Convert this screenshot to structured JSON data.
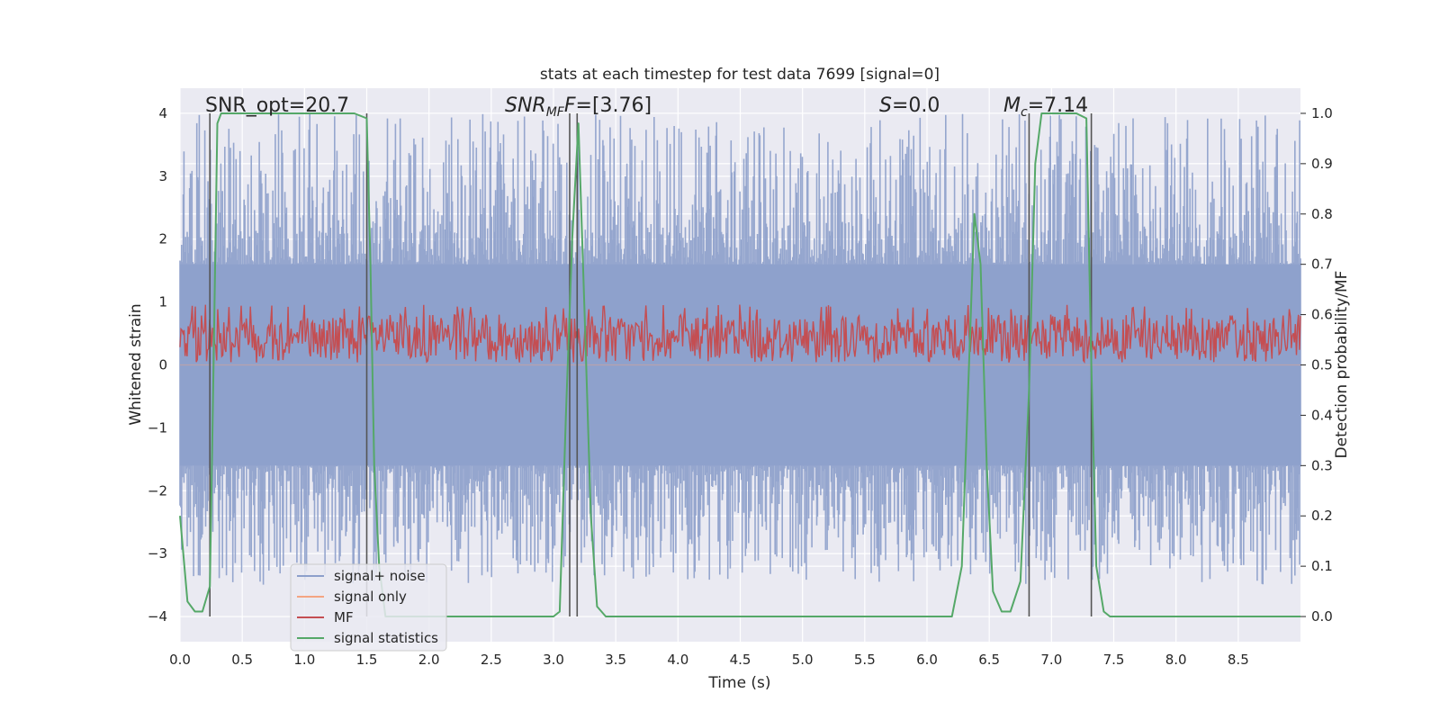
{
  "chart_data": {
    "type": "line",
    "title": "stats at each timestep for test data 7699 [signal=0]",
    "xlabel": "Time (s)",
    "ylabel": "Whitened strain",
    "ylabel_right": "Detection probability/MF",
    "xlim": [
      0,
      9.0
    ],
    "ylim": [
      -4.4,
      4.4
    ],
    "ylim_right": [
      -0.05,
      1.05
    ],
    "x_ticks": [
      0.0,
      0.5,
      1.0,
      1.5,
      2.0,
      2.5,
      3.0,
      3.5,
      4.0,
      4.5,
      5.0,
      5.5,
      6.0,
      6.5,
      7.0,
      7.5,
      8.0,
      8.5
    ],
    "x_tick_labels": [
      "0.0",
      "0.5",
      "1.0",
      "1.5",
      "2.0",
      "2.5",
      "3.0",
      "3.5",
      "4.0",
      "4.5",
      "5.0",
      "5.5",
      "6.0",
      "6.5",
      "7.0",
      "7.5",
      "8.0",
      "8.5"
    ],
    "y_ticks": [
      4,
      3,
      2,
      1,
      0,
      -1,
      -2,
      -3,
      -4
    ],
    "y_tick_labels": [
      "4",
      "3",
      "2",
      "1",
      "0",
      "−1",
      "−2",
      "−3",
      "−4"
    ],
    "y_right_ticks": [
      1.0,
      0.9,
      0.8,
      0.7,
      0.6,
      0.5,
      0.4,
      0.3,
      0.2,
      0.1,
      0.0
    ],
    "y_right_tick_labels": [
      "1.0",
      "0.9",
      "0.8",
      "0.7",
      "0.6",
      "0.5",
      "0.4",
      "0.3",
      "0.2",
      "0.1",
      "0.0"
    ],
    "annotations": {
      "snr_opt": "SNR_opt=20.7",
      "snr_mf_main": "SNR",
      "snr_mf_sub": "MF",
      "snr_mf_rest": "=[3.76]",
      "s_main": "S",
      "s_rest": "=0.0",
      "mc_main": "M",
      "mc_sub": "c",
      "mc_rest": "=7.14"
    },
    "series": [
      {
        "name": "signal+ noise",
        "axis": "left",
        "color": "#8da0cb",
        "kind": "noise",
        "band_min": -1.6,
        "band_max": 1.6,
        "spike_min": -3.5,
        "spike_max": 4.0
      },
      {
        "name": "signal only",
        "axis": "left",
        "color": "#f4a582",
        "x": [
          0,
          9.0
        ],
        "y": [
          0,
          0
        ]
      },
      {
        "name": "MF",
        "axis": "right",
        "color": "#c44e52",
        "kind": "noise",
        "band_min": 0.505,
        "band_max": 0.6,
        "spike_min": 0.5,
        "spike_max": 0.62
      },
      {
        "name": "signal statistics",
        "axis": "right",
        "color": "#55a868",
        "x": [
          0.0,
          0.06,
          0.12,
          0.18,
          0.24,
          0.27,
          0.3,
          0.33,
          0.4,
          0.6,
          1.0,
          1.4,
          1.5,
          1.53,
          1.56,
          1.6,
          1.65,
          2.0,
          2.5,
          3.0,
          3.05,
          3.1,
          3.15,
          3.2,
          3.25,
          3.3,
          3.35,
          3.42,
          4.0,
          5.0,
          6.0,
          6.2,
          6.28,
          6.33,
          6.38,
          6.43,
          6.48,
          6.53,
          6.6,
          6.67,
          6.75,
          6.82,
          6.87,
          6.92,
          7.0,
          7.1,
          7.2,
          7.28,
          7.32,
          7.36,
          7.42,
          7.47,
          7.55,
          8.0,
          8.5,
          9.0
        ],
        "y": [
          0.2,
          0.03,
          0.01,
          0.01,
          0.06,
          0.5,
          0.98,
          1.0,
          1.0,
          1.0,
          1.0,
          1.0,
          0.99,
          0.7,
          0.3,
          0.1,
          0.0,
          0.0,
          0.0,
          0.0,
          0.01,
          0.4,
          0.75,
          0.98,
          0.6,
          0.2,
          0.02,
          0.0,
          0.0,
          0.0,
          0.0,
          0.0,
          0.1,
          0.45,
          0.8,
          0.7,
          0.3,
          0.05,
          0.01,
          0.01,
          0.07,
          0.45,
          0.9,
          1.0,
          1.0,
          1.0,
          1.0,
          0.99,
          0.5,
          0.1,
          0.01,
          0.0,
          0.0,
          0.0,
          0.0,
          0.0
        ]
      }
    ],
    "vertical_lines": [
      0.24,
      1.5,
      3.13,
      3.19,
      6.82,
      7.32
    ],
    "legend": {
      "placement": "lower-left",
      "entries": [
        "signal+ noise",
        "signal only",
        "MF",
        "signal statistics"
      ]
    }
  }
}
